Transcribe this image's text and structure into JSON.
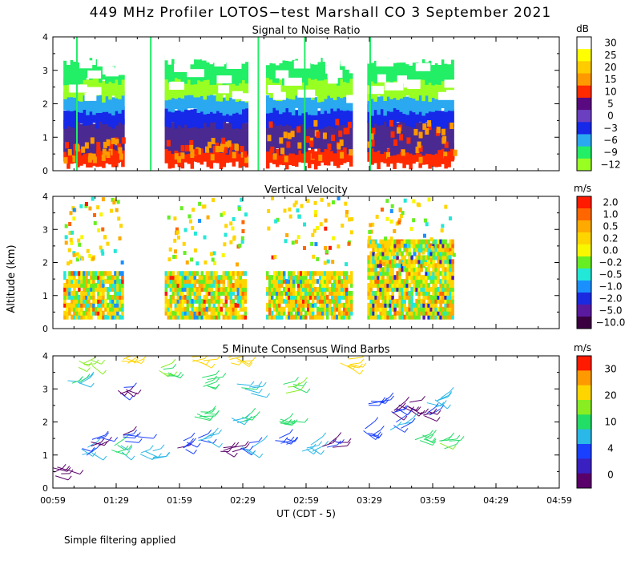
{
  "figure": {
    "title": "449 MHz Profiler LOTOS−test Marshall CO   3 September 2021",
    "ylabel": "Altitude (km)",
    "xlabel": "UT  (CDT - 5)",
    "footnote": "Simple filtering applied",
    "x_tick_labels": [
      "00:59",
      "01:29",
      "01:59",
      "02:29",
      "02:59",
      "03:29",
      "03:59",
      "04:29",
      "04:59"
    ],
    "x_range_minutes_ut": [
      59,
      299
    ],
    "altitude_range_km": [
      0,
      4
    ]
  },
  "chart_data": [
    {
      "type": "heatmap",
      "title": "Signal to Noise Ratio",
      "units": "dB",
      "ylabel": "Altitude (km)",
      "ylim": [
        0,
        4
      ],
      "yticks": [
        0,
        1,
        2,
        3,
        4
      ],
      "colorbar": {
        "labels": [
          "30",
          "25",
          "20",
          "15",
          "10",
          "5",
          "0",
          "−3",
          "−6",
          "−9",
          "−12"
        ],
        "colors": [
          "#ffffff",
          "#ffff00",
          "#ffcc00",
          "#ff9900",
          "#ff2a00",
          "#5a0a80",
          "#6a3fc0",
          "#1628e8",
          "#2aa8f0",
          "#22ee66",
          "#99ff22"
        ]
      },
      "segments_ut": [
        [
          64,
          92
        ],
        [
          112,
          150
        ],
        [
          160,
          200
        ],
        [
          208,
          249
        ]
      ],
      "bands": [
        {
          "alt": [
            0.3,
            0.7
          ],
          "color": "#ff2a00"
        },
        {
          "alt": [
            0.7,
            1.5
          ],
          "color": "#4a2a90"
        },
        {
          "alt": [
            1.5,
            1.9
          ],
          "color": "#1628e8"
        },
        {
          "alt": [
            1.9,
            2.3
          ],
          "color": "#2aa8f0"
        },
        {
          "alt": [
            2.3,
            2.8
          ],
          "color": "#99ff22"
        },
        {
          "alt": [
            2.8,
            3.4
          ],
          "color": "#22ee66"
        },
        {
          "alt": [
            3.4,
            4.1
          ],
          "color": "#ffffff"
        }
      ]
    },
    {
      "type": "heatmap",
      "title": "Vertical Velocity",
      "units": "m/s",
      "ylabel": "Altitude (km)",
      "ylim": [
        0,
        4
      ],
      "yticks": [
        0,
        1,
        2,
        3,
        4
      ],
      "colorbar": {
        "labels": [
          "2.0",
          "1.0",
          "0.5",
          "0.2",
          "0.0",
          "−0.2",
          "−0.5",
          "−1.0",
          "−2.0",
          "−5.0",
          "−10.0"
        ],
        "colors": [
          "#ff1a00",
          "#ff6600",
          "#ffaa00",
          "#ffd500",
          "#f7f700",
          "#66ee22",
          "#22e8d8",
          "#1a90ff",
          "#1a2ae0",
          "#5a1aa0",
          "#3a0040"
        ]
      },
      "segments_ut": [
        [
          64,
          92
        ],
        [
          112,
          150
        ],
        [
          160,
          200
        ],
        [
          208,
          249
        ]
      ],
      "dominant_values_ms": [
        0.2,
        -0.2,
        0.5,
        -0.5
      ]
    },
    {
      "type": "scatter",
      "title": "5 Minute Consensus Wind Barbs",
      "units": "m/s",
      "ylabel": "Altitude (km)",
      "ylim": [
        0,
        4
      ],
      "yticks": [
        0,
        1,
        2,
        3,
        4
      ],
      "colorbar": {
        "labels": [
          "30",
          "20",
          "10",
          "4",
          "0"
        ],
        "colors": [
          "#ff1a00",
          "#ff9900",
          "#ffd500",
          "#88ee22",
          "#22dd66",
          "#2ab8e8",
          "#1a40ff",
          "#3a20c0",
          "#5a006a"
        ]
      },
      "points": [
        {
          "t": 63,
          "alt": 0.5,
          "speed_ms": 2
        },
        {
          "t": 76,
          "alt": 1.1,
          "speed_ms": 5
        },
        {
          "t": 80,
          "alt": 1.4,
          "speed_ms": 3
        },
        {
          "t": 88,
          "alt": 1.2,
          "speed_ms": 7
        },
        {
          "t": 96,
          "alt": 1.5,
          "speed_ms": 3
        },
        {
          "t": 104,
          "alt": 1.0,
          "speed_ms": 6
        },
        {
          "t": 120,
          "alt": 1.3,
          "speed_ms": 3
        },
        {
          "t": 130,
          "alt": 1.5,
          "speed_ms": 5
        },
        {
          "t": 142,
          "alt": 1.1,
          "speed_ms": 2
        },
        {
          "t": 150,
          "alt": 1.3,
          "speed_ms": 5
        },
        {
          "t": 166,
          "alt": 1.4,
          "speed_ms": 4
        },
        {
          "t": 178,
          "alt": 1.2,
          "speed_ms": 6
        },
        {
          "t": 190,
          "alt": 1.3,
          "speed_ms": 3
        },
        {
          "t": 70,
          "alt": 3.1,
          "speed_ms": 7
        },
        {
          "t": 92,
          "alt": 3.0,
          "speed_ms": 3
        },
        {
          "t": 112,
          "alt": 3.5,
          "speed_ms": 9
        },
        {
          "t": 130,
          "alt": 3.2,
          "speed_ms": 8
        },
        {
          "t": 150,
          "alt": 3.0,
          "speed_ms": 7
        },
        {
          "t": 170,
          "alt": 3.0,
          "speed_ms": 9
        },
        {
          "t": 130,
          "alt": 2.3,
          "speed_ms": 8
        },
        {
          "t": 146,
          "alt": 2.1,
          "speed_ms": 7
        },
        {
          "t": 168,
          "alt": 2.0,
          "speed_ms": 8
        },
        {
          "t": 75,
          "alt": 3.8,
          "speed_ms": 10
        },
        {
          "t": 94,
          "alt": 3.9,
          "speed_ms": 12
        },
        {
          "t": 128,
          "alt": 3.9,
          "speed_ms": 12
        },
        {
          "t": 146,
          "alt": 3.9,
          "speed_ms": 13
        },
        {
          "t": 196,
          "alt": 3.8,
          "speed_ms": 11
        },
        {
          "t": 212,
          "alt": 2.6,
          "speed_ms": 4
        },
        {
          "t": 220,
          "alt": 2.3,
          "speed_ms": 3
        },
        {
          "t": 226,
          "alt": 2.5,
          "speed_ms": 2
        },
        {
          "t": 234,
          "alt": 2.2,
          "speed_ms": 3
        },
        {
          "t": 240,
          "alt": 2.6,
          "speed_ms": 6
        },
        {
          "t": 232,
          "alt": 1.5,
          "speed_ms": 8
        },
        {
          "t": 244,
          "alt": 1.3,
          "speed_ms": 9
        },
        {
          "t": 222,
          "alt": 1.9,
          "speed_ms": 5
        },
        {
          "t": 210,
          "alt": 1.7,
          "speed_ms": 4
        }
      ]
    }
  ]
}
